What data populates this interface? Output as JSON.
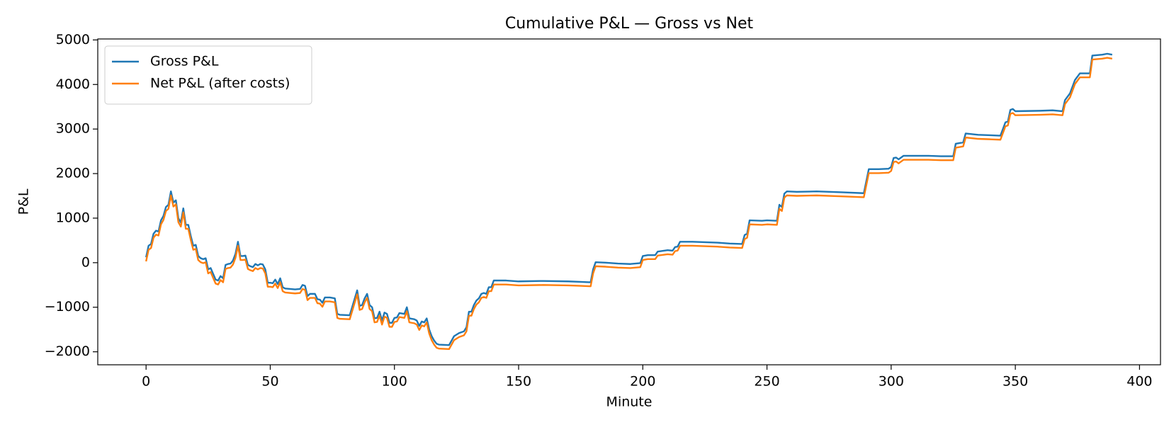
{
  "chart_data": {
    "type": "line",
    "title": "Cumulative P&L — Gross vs Net",
    "xlabel": "Minute",
    "ylabel": "P&L",
    "x": [
      0,
      1,
      2,
      3,
      4,
      5,
      6,
      7,
      8,
      9,
      10,
      11,
      12,
      13,
      14,
      15,
      16,
      17,
      18,
      19,
      20,
      21,
      22,
      23,
      24,
      25,
      26,
      27,
      28,
      29,
      30,
      31,
      32,
      33,
      34,
      35,
      36,
      37,
      38,
      39,
      40,
      41,
      42,
      43,
      44,
      45,
      46,
      47,
      48,
      49,
      50,
      51,
      52,
      53,
      54,
      55,
      56,
      58,
      60,
      62,
      63,
      64,
      65,
      66,
      68,
      69,
      70,
      71,
      72,
      74,
      76,
      77,
      78,
      82,
      85,
      86,
      87,
      88,
      89,
      90,
      91,
      92,
      93,
      94,
      95,
      96,
      97,
      98,
      99,
      100,
      101,
      102,
      104,
      105,
      106,
      108,
      109,
      110,
      111,
      112,
      113,
      114,
      115,
      116,
      117,
      118,
      122,
      123,
      124,
      126,
      128,
      129,
      130,
      131,
      132,
      133,
      134,
      135,
      136,
      137,
      138,
      139,
      140,
      145,
      150,
      160,
      170,
      175,
      179,
      180,
      181,
      185,
      190,
      195,
      199,
      200,
      202,
      205,
      206,
      210,
      212,
      213,
      214,
      215,
      220,
      230,
      235,
      240,
      241,
      242,
      243,
      248,
      250,
      254,
      255,
      256,
      257,
      258,
      262,
      270,
      280,
      289,
      291,
      295,
      299,
      300,
      301,
      302,
      303,
      305,
      310,
      315,
      320,
      325,
      326,
      329,
      330,
      335,
      340,
      344,
      345,
      346,
      347,
      348,
      349,
      350,
      360,
      365,
      369,
      370,
      372,
      374,
      376,
      380,
      381,
      385,
      387,
      389
    ],
    "series": [
      {
        "name": "Gross P&L",
        "color": "#1f77b4",
        "values": [
          120,
          380,
          420,
          650,
          720,
          700,
          950,
          1050,
          1250,
          1300,
          1600,
          1350,
          1400,
          1000,
          900,
          1220,
          850,
          850,
          600,
          380,
          400,
          150,
          100,
          80,
          100,
          -150,
          -120,
          -250,
          -380,
          -400,
          -300,
          -350,
          -50,
          -30,
          -20,
          50,
          200,
          470,
          150,
          150,
          160,
          -50,
          -80,
          -100,
          -30,
          -60,
          -30,
          -40,
          -150,
          -450,
          -450,
          -460,
          -380,
          -480,
          -350,
          -550,
          -580,
          -590,
          -600,
          -590,
          -500,
          -520,
          -750,
          -700,
          -700,
          -820,
          -830,
          -900,
          -780,
          -780,
          -800,
          -1150,
          -1170,
          -1180,
          -620,
          -970,
          -950,
          -800,
          -700,
          -950,
          -1000,
          -1250,
          -1240,
          -1100,
          -1300,
          -1120,
          -1150,
          -1350,
          -1350,
          -1240,
          -1230,
          -1130,
          -1150,
          -1000,
          -1250,
          -1270,
          -1300,
          -1420,
          -1320,
          -1340,
          -1250,
          -1500,
          -1650,
          -1750,
          -1820,
          -1840,
          -1850,
          -1750,
          -1650,
          -1580,
          -1540,
          -1450,
          -1100,
          -1100,
          -950,
          -850,
          -800,
          -700,
          -680,
          -700,
          -550,
          -550,
          -400,
          -400,
          -420,
          -410,
          -420,
          -430,
          -440,
          -150,
          10,
          0,
          -20,
          -30,
          -10,
          150,
          170,
          170,
          250,
          280,
          270,
          350,
          360,
          470,
          470,
          450,
          430,
          420,
          620,
          650,
          950,
          940,
          950,
          940,
          1300,
          1250,
          1550,
          1600,
          1590,
          1600,
          1580,
          1560,
          2100,
          2100,
          2110,
          2150,
          2350,
          2360,
          2320,
          2400,
          2400,
          2400,
          2390,
          2390,
          2670,
          2700,
          2900,
          2870,
          2860,
          2850,
          3000,
          3150,
          3170,
          3430,
          3450,
          3400,
          3410,
          3420,
          3400,
          3650,
          3800,
          4100,
          4250,
          4250,
          4650,
          4670,
          4690,
          4670
        ]
      },
      {
        "name": "Net P&L (after costs)",
        "color": "#ff7f0e",
        "values": [
          30,
          290,
          330,
          560,
          630,
          610,
          860,
          960,
          1160,
          1210,
          1510,
          1260,
          1310,
          910,
          810,
          1130,
          760,
          760,
          510,
          290,
          310,
          60,
          10,
          -10,
          10,
          -240,
          -210,
          -340,
          -470,
          -490,
          -390,
          -440,
          -140,
          -120,
          -110,
          -40,
          110,
          380,
          60,
          60,
          70,
          -140,
          -170,
          -190,
          -120,
          -150,
          -120,
          -130,
          -240,
          -540,
          -540,
          -550,
          -470,
          -570,
          -440,
          -640,
          -670,
          -680,
          -690,
          -680,
          -590,
          -610,
          -840,
          -790,
          -790,
          -910,
          -920,
          -990,
          -870,
          -870,
          -890,
          -1240,
          -1260,
          -1270,
          -710,
          -1060,
          -1040,
          -890,
          -790,
          -1040,
          -1090,
          -1340,
          -1330,
          -1190,
          -1390,
          -1210,
          -1240,
          -1440,
          -1440,
          -1330,
          -1320,
          -1220,
          -1240,
          -1090,
          -1340,
          -1360,
          -1390,
          -1510,
          -1410,
          -1430,
          -1340,
          -1590,
          -1740,
          -1840,
          -1910,
          -1930,
          -1940,
          -1840,
          -1740,
          -1670,
          -1630,
          -1540,
          -1190,
          -1190,
          -1040,
          -940,
          -890,
          -790,
          -770,
          -790,
          -640,
          -640,
          -490,
          -490,
          -510,
          -500,
          -510,
          -520,
          -530,
          -240,
          -80,
          -90,
          -110,
          -120,
          -100,
          60,
          80,
          80,
          160,
          190,
          180,
          260,
          270,
          380,
          380,
          360,
          340,
          330,
          530,
          560,
          860,
          850,
          860,
          850,
          1210,
          1160,
          1460,
          1510,
          1500,
          1510,
          1490,
          1470,
          2010,
          2010,
          2020,
          2060,
          2260,
          2270,
          2230,
          2310,
          2310,
          2310,
          2300,
          2300,
          2580,
          2610,
          2810,
          2780,
          2770,
          2760,
          2910,
          3060,
          3080,
          3340,
          3360,
          3310,
          3320,
          3330,
          3310,
          3560,
          3710,
          4010,
          4160,
          4160,
          4560,
          4580,
          4600,
          4580
        ]
      }
    ],
    "xlim": [
      -19.45,
      408.45
    ],
    "ylim": [
      -2292,
      5022
    ],
    "xticks": [
      0,
      50,
      100,
      150,
      200,
      250,
      300,
      350,
      400
    ],
    "yticks": [
      {
        "value": -2000,
        "label": "−2000"
      },
      {
        "value": -1000,
        "label": "−1000"
      },
      0,
      1000,
      2000,
      3000,
      4000,
      5000
    ],
    "grid": false,
    "legend": "upper left"
  }
}
